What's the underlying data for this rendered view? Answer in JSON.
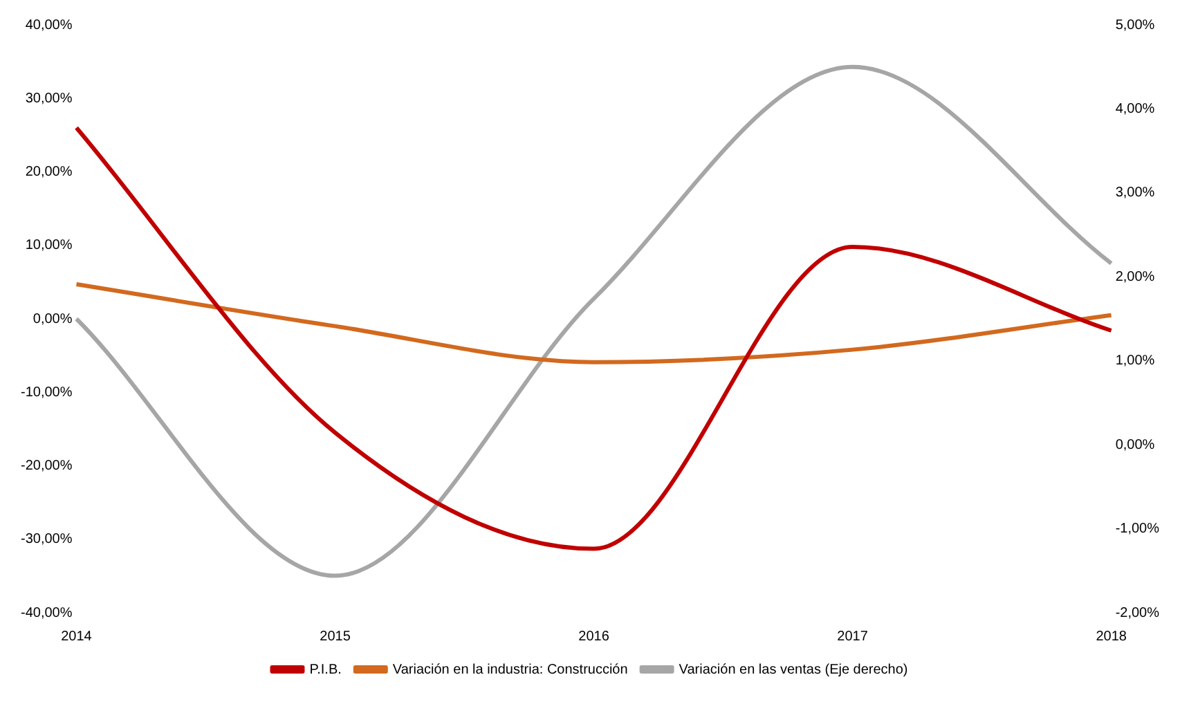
{
  "chart_data": {
    "type": "line",
    "categories": [
      "2014",
      "2015",
      "2016",
      "2017",
      "2018"
    ],
    "series": [
      {
        "name": "P.I.B.",
        "color": "#c00000",
        "values": [
          26.0,
          -15.5,
          -31.3,
          9.8,
          -1.6
        ]
      },
      {
        "name": "Variación en la industria: Construcción",
        "color": "#d2691e",
        "values": [
          4.7,
          -1.0,
          -5.9,
          -4.2,
          0.5
        ]
      },
      {
        "name": "Variación en las ventas (Eje derecho)",
        "color": "#a6a6a6",
        "values": [
          1.5,
          -1.56,
          1.74,
          4.5,
          2.16
        ],
        "axis": "y2"
      }
    ],
    "ylim": [
      -40,
      40
    ],
    "yticks": [
      {
        "value": -40,
        "label": "-40,00%"
      },
      {
        "value": -30,
        "label": "-30,00%"
      },
      {
        "value": -20,
        "label": "-20,00%"
      },
      {
        "value": -10,
        "label": "-10,00%"
      },
      {
        "value": 0,
        "label": "0,00%"
      },
      {
        "value": 10,
        "label": "10,00%"
      },
      {
        "value": 20,
        "label": "20,00%"
      },
      {
        "value": 30,
        "label": "30,00%"
      },
      {
        "value": 40,
        "label": "40,00%"
      }
    ],
    "y2lim": [
      -2,
      5
    ],
    "y2ticks": [
      {
        "value": -2,
        "label": "-2,00%"
      },
      {
        "value": -1,
        "label": "-1,00%"
      },
      {
        "value": 0,
        "label": "0,00%"
      },
      {
        "value": 1,
        "label": "1,00%"
      },
      {
        "value": 2,
        "label": "2,00%"
      },
      {
        "value": 3,
        "label": "3,00%"
      },
      {
        "value": 4,
        "label": "4,00%"
      },
      {
        "value": 5,
        "label": "5,00%"
      }
    ],
    "legend": "bottom",
    "marker": "none",
    "line_style": "solid",
    "grid": false
  }
}
